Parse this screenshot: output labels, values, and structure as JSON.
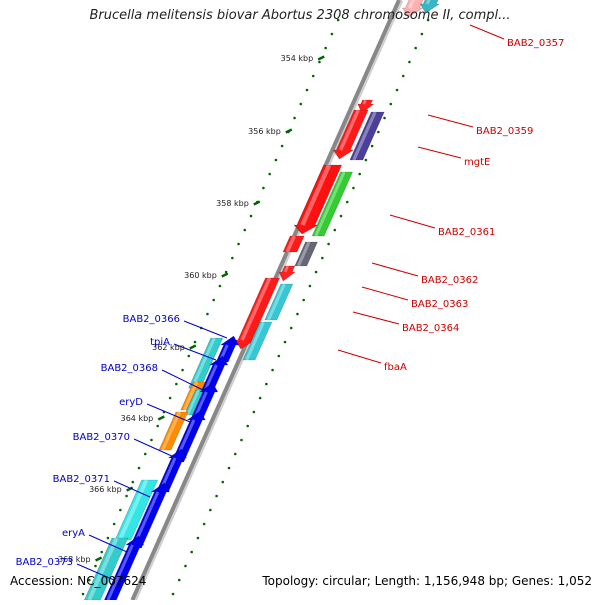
{
  "title": "Brucella melitensis biovar Abortus 2308 chromosome II, compl...",
  "accession": "Accession: NC_007624",
  "summary": "Topology: circular; Length: 1,156,948 bp; Genes: 1,052",
  "colors": {
    "forward_label": "#cc0000",
    "reverse_label": "#0000cc",
    "tick": "#006600",
    "backbone": "#888888"
  },
  "ruler": [
    "354 kbp",
    "356 kbp",
    "358 kbp",
    "360 kbp",
    "362 kbp",
    "364 kbp",
    "366 kbp",
    "368 kbp"
  ],
  "forward_labels": [
    "BAB2_0357",
    "BAB2_0359",
    "mgtE",
    "BAB2_0361",
    "BAB2_0362",
    "BAB2_0363",
    "BAB2_0364",
    "fbaA"
  ],
  "reverse_labels": [
    "BAB2_0366",
    "tpiA",
    "BAB2_0368",
    "eryD",
    "BAB2_0370",
    "BAB2_0371",
    "eryA",
    "BAB2_0373"
  ]
}
